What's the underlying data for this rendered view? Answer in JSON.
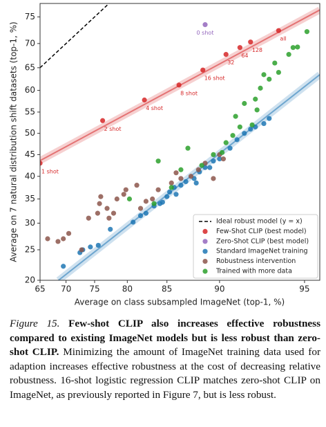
{
  "chart_data": {
    "type": "scatter",
    "xscale": "logit",
    "yscale": "logit",
    "xlabel": "Average on class subsampled ImageNet (top-1, %)",
    "ylabel": "Average on 7 natural distribution shift datasets (top-1, %)",
    "xlim": [
      65,
      95.6
    ],
    "ylim": [
      20,
      77.3
    ],
    "xticks": [
      65,
      70,
      75,
      80,
      85,
      90,
      95
    ],
    "yticks": [
      20,
      25,
      30,
      35,
      40,
      45,
      50,
      55,
      60,
      65,
      70,
      75
    ],
    "grid": false,
    "legend": "lower right",
    "ideal_line": {
      "name": "Ideal robust model (y = x)",
      "color": "#000000",
      "x": [
        65,
        77.3
      ],
      "values": [
        65,
        77.3
      ]
    },
    "fits": [
      {
        "color": "#d62728",
        "x": [
          65,
          95.6
        ],
        "values": [
          43.6,
          76.2
        ]
      },
      {
        "color": "#1f77b4",
        "x": [
          68.6,
          95.6
        ],
        "values": [
          20,
          63.5
        ]
      }
    ],
    "series": [
      {
        "name": "Few-Shot CLIP (best model)",
        "color": "#d62728",
        "x": [
          65,
          76.3,
          82.3,
          86.3,
          88.6,
          90.5,
          91.5,
          92.2,
          93.8
        ],
        "values": [
          43,
          53,
          57.8,
          61.2,
          64.5,
          67.8,
          69.2,
          70.3,
          72.5
        ],
        "point_labels": [
          "1 shot",
          "2 shot",
          "4 shot",
          "8 shot",
          "16 shot",
          "32",
          "64",
          "128",
          "all"
        ]
      },
      {
        "name": "Zero-Shot CLIP (best model)",
        "color": "#9467bd",
        "x": [
          88.8
        ],
        "values": [
          73.6
        ],
        "point_labels": [
          "0 shot"
        ]
      },
      {
        "name": "Standard ImageNet training",
        "color": "#1f77b4",
        "x": [
          69.5,
          72.5,
          73,
          74.3,
          75.6,
          77.5,
          80.8,
          81.8,
          82.5,
          83.5,
          84.2,
          85,
          85.3,
          85.8,
          86.5,
          87,
          87.8,
          88.3,
          88.8,
          89.2,
          89.5,
          90,
          90.8,
          91.3,
          91.8,
          92.2,
          92.5,
          93,
          93.3,
          86,
          84.5,
          88
        ],
        "values": [
          22.2,
          24.5,
          25,
          25.5,
          25.8,
          28.8,
          30.2,
          31.5,
          32,
          33.5,
          34,
          35.5,
          36.5,
          37.5,
          38,
          38.8,
          39.5,
          41,
          42,
          42,
          43.5,
          44,
          46.5,
          48.5,
          50,
          51,
          51.5,
          52.3,
          53.5,
          36,
          34.3,
          38.5
        ]
      },
      {
        "name": "Robustness intervention",
        "color": "#8c564b",
        "x": [
          66.5,
          68.5,
          69.5,
          70.5,
          72.8,
          74,
          75.5,
          75.8,
          76,
          77,
          77.3,
          78,
          78.5,
          79.5,
          79.8,
          81.3,
          81.8,
          82.5,
          83.3,
          84,
          85.5,
          86.5,
          87.5,
          88.2,
          89.5,
          88.8,
          90,
          90.3,
          86
        ],
        "values": [
          27,
          26.5,
          27,
          28,
          25,
          31,
          32,
          34,
          35.5,
          33,
          31,
          32,
          35,
          36,
          37,
          38,
          33,
          34.5,
          35,
          37,
          38.5,
          39.5,
          40,
          41.5,
          39.5,
          43,
          45,
          44,
          40.8
        ]
      },
      {
        "name": "Trained with more data",
        "color": "#2ca02c",
        "x": [
          80.3,
          83.5,
          84,
          85.5,
          86.5,
          87.2,
          88.5,
          89.5,
          90.2,
          90.5,
          91,
          91.2,
          91.5,
          91.8,
          92.3,
          92.5,
          92.8,
          93.3,
          93.6,
          93.8,
          94.3,
          94.5,
          94.7,
          95.1,
          92.6,
          93
        ],
        "values": [
          35,
          34,
          43.5,
          37.5,
          41.5,
          46.5,
          42.5,
          45,
          45.5,
          47.8,
          49.5,
          54,
          51.5,
          57,
          52,
          58,
          60.5,
          62.5,
          66,
          64,
          67.8,
          69.2,
          69.3,
          72.3,
          55.5,
          63.5
        ]
      }
    ]
  },
  "caption": {
    "label": "Figure 15.",
    "bold": "Few-shot CLIP also increases effective robustness compared to existing ImageNet models but is less robust than zero-shot CLIP.",
    "text": "Minimizing the amount of ImageNet training data used for adaption increases effective robustness at the cost of decreasing relative robustness. 16-shot logistic regression CLIP matches zero-shot CLIP on ImageNet, as previously reported in Figure 7, but is less robust."
  }
}
